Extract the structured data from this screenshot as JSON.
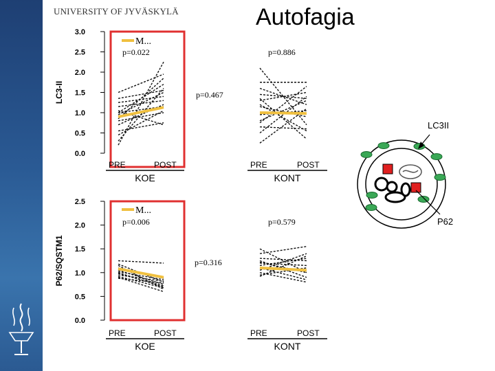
{
  "header": {
    "university": "UNIVERSITY OF JYVÄSKYLÄ",
    "title": "Autofagia"
  },
  "colors": {
    "sidebar": "#2a5a94",
    "mean_line": "#f0c040",
    "highlight_box": "#e03030",
    "cell_dots": "#3aa856",
    "cell_red": "#e02020"
  },
  "diagram": {
    "lc3_label": "LC3II",
    "p62_label": "P62"
  },
  "chart_data": [
    {
      "type": "line",
      "ylabel": "LC3-II",
      "ylim": [
        0,
        3.0
      ],
      "yticks": [
        "3.0",
        "2.5",
        "2.0",
        "1.5",
        "1.0",
        "0.5",
        "0.0"
      ],
      "legend": "M...",
      "groups": [
        {
          "name": "KOE",
          "categories": [
            "PRE",
            "POST"
          ],
          "p_value": "p=0.022",
          "mean": [
            0.9,
            1.13
          ],
          "subjects": [
            [
              0.2,
              2.25
            ],
            [
              1.5,
              1.95
            ],
            [
              1.35,
              1.55
            ],
            [
              1.0,
              1.7
            ],
            [
              1.25,
              1.4
            ],
            [
              0.85,
              1.85
            ],
            [
              1.15,
              1.3
            ],
            [
              0.7,
              1.2
            ],
            [
              1.0,
              1.15
            ],
            [
              0.45,
              1.05
            ],
            [
              0.8,
              1.0
            ],
            [
              0.55,
              0.75
            ],
            [
              1.05,
              0.7
            ],
            [
              0.3,
              1.6
            ],
            [
              0.95,
              1.5
            ]
          ]
        },
        {
          "name": "KONT",
          "categories": [
            "PRE",
            "POST"
          ],
          "p_value": "p=0.886",
          "mean": [
            1.0,
            0.98
          ],
          "subjects": [
            [
              2.1,
              0.7
            ],
            [
              1.75,
              1.75
            ],
            [
              1.6,
              1.2
            ],
            [
              1.45,
              1.35
            ],
            [
              1.3,
              1.5
            ],
            [
              1.15,
              0.9
            ],
            [
              0.95,
              1.05
            ],
            [
              0.8,
              1.3
            ],
            [
              0.65,
              0.6
            ],
            [
              0.5,
              1.4
            ],
            [
              1.35,
              0.35
            ],
            [
              0.25,
              1.1
            ],
            [
              1.2,
              0.55
            ],
            [
              0.75,
              1.65
            ]
          ]
        }
      ],
      "between_p": "p=0.467"
    },
    {
      "type": "line",
      "ylabel": "P62/SQSTM1",
      "ylim": [
        0,
        2.5
      ],
      "yticks": [
        "2.5",
        "2.0",
        "1.5",
        "1.0",
        "0.5",
        "0.0"
      ],
      "legend": "M...",
      "groups": [
        {
          "name": "KOE",
          "categories": [
            "PRE",
            "POST"
          ],
          "p_value": "p=0.006",
          "mean": [
            1.08,
            0.9
          ],
          "subjects": [
            [
              1.25,
              1.2
            ],
            [
              1.1,
              0.88
            ],
            [
              1.05,
              0.75
            ],
            [
              1.0,
              0.7
            ],
            [
              0.95,
              0.82
            ],
            [
              0.92,
              0.68
            ],
            [
              0.88,
              0.78
            ],
            [
              1.15,
              0.65
            ],
            [
              0.98,
              0.72
            ],
            [
              1.02,
              0.85
            ],
            [
              0.9,
              0.6
            ],
            [
              1.18,
              0.8
            ]
          ]
        },
        {
          "name": "KONT",
          "categories": [
            "PRE",
            "POST"
          ],
          "p_value": "p=0.579",
          "mean": [
            1.1,
            1.05
          ],
          "subjects": [
            [
              1.5,
              1.0
            ],
            [
              1.4,
              1.55
            ],
            [
              1.3,
              1.25
            ],
            [
              1.25,
              0.9
            ],
            [
              1.2,
              1.15
            ],
            [
              1.15,
              1.3
            ],
            [
              1.1,
              0.85
            ],
            [
              1.05,
              1.4
            ],
            [
              1.0,
              0.8
            ],
            [
              0.95,
              1.1
            ],
            [
              1.22,
              1.0
            ],
            [
              0.92,
              1.35
            ]
          ]
        }
      ],
      "between_p": "p=0.316"
    }
  ]
}
